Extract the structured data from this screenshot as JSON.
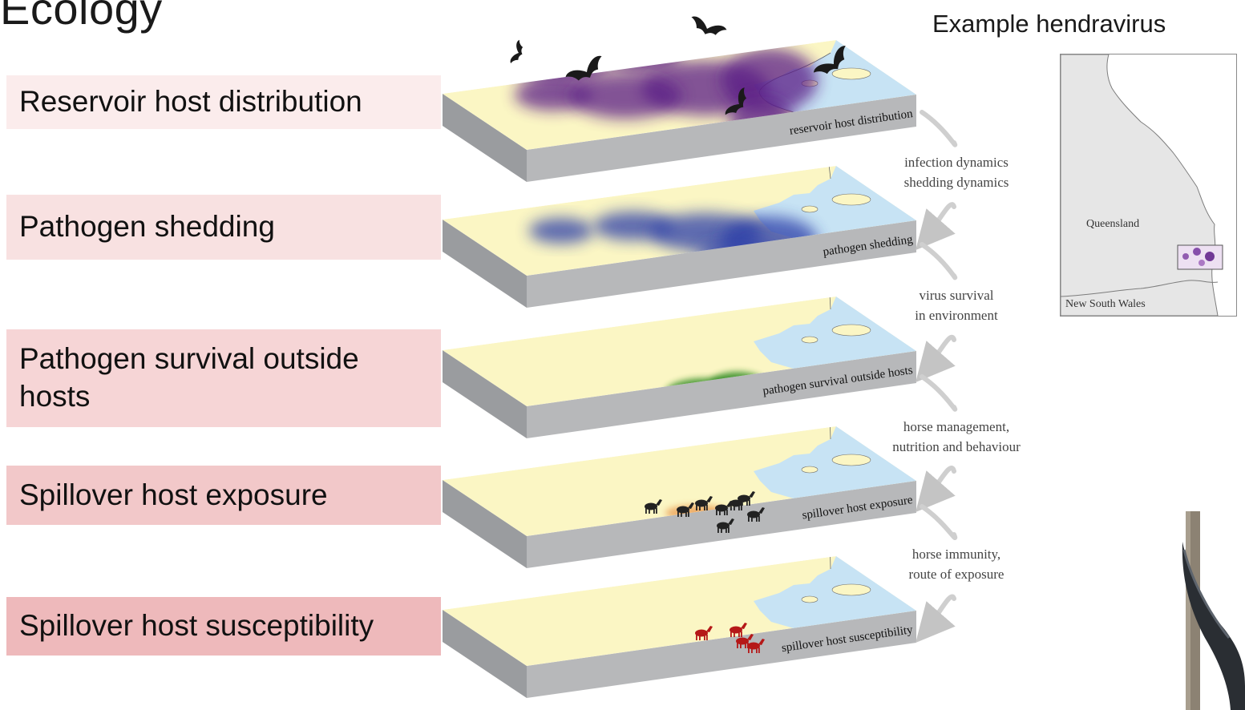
{
  "title": "Ecology",
  "example": {
    "title": "Example hendravirus",
    "map_labels": [
      "Queensland",
      "New South Wales"
    ]
  },
  "labels": [
    "Reservoir host distribution",
    "Pathogen shedding",
    "Pathogen survival outside hosts",
    "Spillover host exposure",
    "Spillover host susceptibility"
  ],
  "layer_captions": [
    "reservoir host distribution",
    "pathogen shedding",
    "pathogen survival outside hosts",
    "spillover host exposure",
    "spillover host susceptibility"
  ],
  "arrow_captions": [
    [
      "infection dynamics",
      "shedding dynamics"
    ],
    [
      "virus survival",
      "in environment"
    ],
    [
      "horse management,",
      "nutrition and behaviour"
    ],
    [
      "horse immunity,",
      "route of exposure"
    ]
  ],
  "colors": {
    "land": "#fbf6c4",
    "sea": "#c7e3f4",
    "slab_side": "#9a9c9f",
    "slab_front": "#b7b8ba",
    "reservoir": "#5a1a86",
    "shedding": "#2a3ea8",
    "survival": "#2f8a22",
    "exposure": "#e9944a",
    "susceptibility": "#b51818",
    "label_boxes": [
      "#fbecec",
      "#f8e1e1",
      "#f6d5d6",
      "#f2c8c9",
      "#eeb9bb"
    ]
  }
}
